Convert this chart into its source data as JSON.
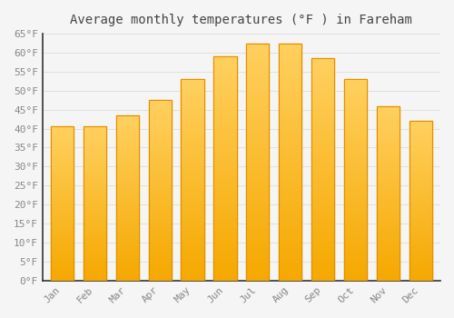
{
  "title": "Average monthly temperatures (°F ) in Fareham",
  "months": [
    "Jan",
    "Feb",
    "Mar",
    "Apr",
    "May",
    "Jun",
    "Jul",
    "Aug",
    "Sep",
    "Oct",
    "Nov",
    "Dec"
  ],
  "values": [
    40.5,
    40.5,
    43.5,
    47.5,
    53.0,
    59.0,
    62.5,
    62.5,
    58.5,
    53.0,
    46.0,
    42.0
  ],
  "bar_color_gradient_top": "#FFD060",
  "bar_color_gradient_bottom": "#F5A800",
  "bar_edge_color": "#E09000",
  "ylim": [
    0,
    65
  ],
  "yticks": [
    0,
    5,
    10,
    15,
    20,
    25,
    30,
    35,
    40,
    45,
    50,
    55,
    60,
    65
  ],
  "ytick_labels": [
    "0°F",
    "5°F",
    "10°F",
    "15°F",
    "20°F",
    "25°F",
    "30°F",
    "35°F",
    "40°F",
    "45°F",
    "50°F",
    "55°F",
    "60°F",
    "65°F"
  ],
  "title_fontsize": 10,
  "tick_fontsize": 8,
  "tick_color": "#888888",
  "background_color": "#f5f5f5",
  "plot_bg_color": "#f5f5f5",
  "grid_color": "#e0e0e0",
  "spine_color": "#333333",
  "bar_width": 0.7
}
